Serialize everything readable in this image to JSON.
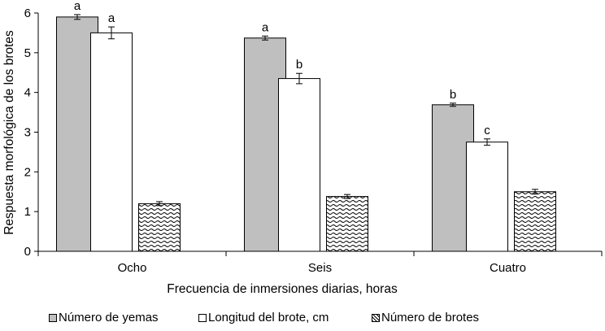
{
  "chart_data": {
    "type": "bar",
    "xlabel": "Frecuencia de inmersiones diarias, horas",
    "ylabel": "Respuesta morfológica de los brotes",
    "ylim": [
      0,
      6
    ],
    "yticks": [
      "0",
      "1",
      "2",
      "3",
      "4",
      "5",
      "6"
    ],
    "categories": [
      "Ocho",
      "Seis",
      "Cuatro"
    ],
    "legend_position": "bottom",
    "series": [
      {
        "name": "Número de yemas",
        "color": "#bfbfbf",
        "fill": "solid",
        "values": [
          5.9,
          5.37,
          3.69
        ],
        "errors": [
          0.06,
          0.05,
          0.04
        ],
        "labels": [
          "a",
          "a",
          "b"
        ]
      },
      {
        "name": "Longitud del brote, cm",
        "color": "#ffffff",
        "fill": "solid",
        "values": [
          5.5,
          4.35,
          2.75
        ],
        "errors": [
          0.15,
          0.13,
          0.08
        ],
        "labels": [
          "a",
          "b",
          "c"
        ]
      },
      {
        "name": "Número de brotes",
        "color": "#ffffff",
        "fill": "wave-pattern",
        "values": [
          1.2,
          1.38,
          1.5
        ],
        "errors": [
          0.05,
          0.05,
          0.06
        ],
        "labels": [
          "",
          "",
          ""
        ]
      }
    ]
  }
}
